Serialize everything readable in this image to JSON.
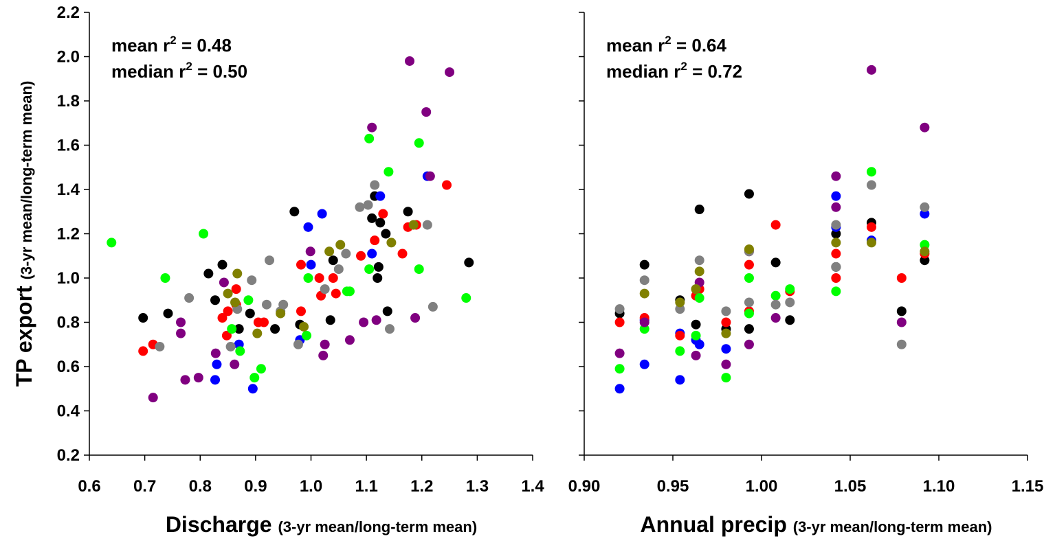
{
  "colors": {
    "black": "#000000",
    "blue": "#0000ff",
    "red": "#ff0000",
    "green": "#00ff00",
    "purple": "#800080",
    "gray": "#808080",
    "olive": "#808000"
  },
  "chart_data": [
    {
      "type": "scatter",
      "ylabel": "TP export",
      "ylabel_sub": "(3-yr mean/long-term mean)",
      "xlabel": "Discharge",
      "xlabel_sub": "(3-yr mean/long-term mean)",
      "xlim": [
        0.6,
        1.4
      ],
      "ylim": [
        0.2,
        2.2
      ],
      "xticks": [
        "0.6",
        "0.7",
        "0.8",
        "0.9",
        "1.0",
        "1.1",
        "1.2",
        "1.3",
        "1.4"
      ],
      "yticks": [
        "0.2",
        "0.4",
        "0.6",
        "0.8",
        "1.0",
        "1.2",
        "1.4",
        "1.6",
        "1.8",
        "2.0",
        "2.2"
      ],
      "annotations": [
        {
          "pre": "mean r",
          "sup": "2",
          "post": " = 0.48"
        },
        {
          "pre": "median r",
          "sup": "2",
          "post": " = 0.50"
        }
      ],
      "series": [
        {
          "color": "#000000",
          "points": [
            [
              0.697,
              0.82
            ],
            [
              0.742,
              0.84
            ],
            [
              0.815,
              1.02
            ],
            [
              0.827,
              0.9
            ],
            [
              0.84,
              1.06
            ],
            [
              0.87,
              0.77
            ],
            [
              0.89,
              0.84
            ],
            [
              0.935,
              0.77
            ],
            [
              0.97,
              1.3
            ],
            [
              0.98,
              0.79
            ],
            [
              1.035,
              0.81
            ],
            [
              1.04,
              1.08
            ],
            [
              1.11,
              1.27
            ],
            [
              1.115,
              1.37
            ],
            [
              1.12,
              1.0
            ],
            [
              1.122,
              1.05
            ],
            [
              1.125,
              1.25
            ],
            [
              1.135,
              1.2
            ],
            [
              1.138,
              0.85
            ],
            [
              1.175,
              1.3
            ],
            [
              1.285,
              1.07
            ]
          ]
        },
        {
          "color": "#0000ff",
          "points": [
            [
              0.827,
              0.54
            ],
            [
              0.83,
              0.61
            ],
            [
              0.87,
              0.7
            ],
            [
              0.895,
              0.5
            ],
            [
              0.98,
              0.72
            ],
            [
              0.995,
              1.23
            ],
            [
              1.0,
              1.06
            ],
            [
              1.02,
              1.29
            ],
            [
              1.11,
              1.11
            ],
            [
              1.125,
              1.37
            ],
            [
              1.21,
              1.46
            ]
          ]
        },
        {
          "color": "#ff0000",
          "points": [
            [
              0.697,
              0.67
            ],
            [
              0.715,
              0.7
            ],
            [
              0.84,
              0.82
            ],
            [
              0.848,
              0.74
            ],
            [
              0.85,
              0.85
            ],
            [
              0.865,
              0.95
            ],
            [
              0.865,
              0.88
            ],
            [
              0.905,
              0.8
            ],
            [
              0.915,
              0.8
            ],
            [
              0.982,
              0.85
            ],
            [
              0.982,
              1.06
            ],
            [
              1.015,
              1.0
            ],
            [
              1.018,
              0.92
            ],
            [
              1.04,
              1.0
            ],
            [
              1.045,
              0.93
            ],
            [
              1.09,
              1.1
            ],
            [
              1.115,
              1.17
            ],
            [
              1.13,
              1.29
            ],
            [
              1.165,
              1.11
            ],
            [
              1.175,
              1.23
            ],
            [
              1.19,
              1.24
            ],
            [
              1.245,
              1.42
            ]
          ]
        },
        {
          "color": "#00ff00",
          "points": [
            [
              0.64,
              1.16
            ],
            [
              0.737,
              1.0
            ],
            [
              0.806,
              1.2
            ],
            [
              0.857,
              0.77
            ],
            [
              0.872,
              0.67
            ],
            [
              0.887,
              0.9
            ],
            [
              0.898,
              0.55
            ],
            [
              0.91,
              0.59
            ],
            [
              0.992,
              0.74
            ],
            [
              0.995,
              1.0
            ],
            [
              1.065,
              0.94
            ],
            [
              1.07,
              0.94
            ],
            [
              1.105,
              1.04
            ],
            [
              1.105,
              1.63
            ],
            [
              1.14,
              1.48
            ],
            [
              1.195,
              1.61
            ],
            [
              1.195,
              1.04
            ],
            [
              1.28,
              0.91
            ]
          ]
        },
        {
          "color": "#800080",
          "points": [
            [
              0.715,
              0.46
            ],
            [
              0.765,
              0.8
            ],
            [
              0.765,
              0.75
            ],
            [
              0.773,
              0.54
            ],
            [
              0.797,
              0.55
            ],
            [
              0.828,
              0.66
            ],
            [
              0.843,
              0.98
            ],
            [
              0.862,
              0.61
            ],
            [
              0.999,
              1.12
            ],
            [
              1.022,
              0.65
            ],
            [
              1.025,
              0.7
            ],
            [
              1.07,
              0.72
            ],
            [
              1.095,
              0.8
            ],
            [
              1.11,
              1.68
            ],
            [
              1.118,
              0.81
            ],
            [
              1.178,
              1.98
            ],
            [
              1.188,
              0.82
            ],
            [
              1.208,
              1.75
            ],
            [
              1.215,
              1.46
            ],
            [
              1.25,
              1.93
            ]
          ]
        },
        {
          "color": "#808080",
          "points": [
            [
              0.727,
              0.69
            ],
            [
              0.78,
              0.91
            ],
            [
              0.855,
              0.69
            ],
            [
              0.867,
              0.86
            ],
            [
              0.893,
              0.99
            ],
            [
              0.92,
              0.88
            ],
            [
              0.925,
              1.08
            ],
            [
              0.945,
              0.85
            ],
            [
              0.95,
              0.88
            ],
            [
              0.977,
              0.7
            ],
            [
              1.025,
              0.95
            ],
            [
              1.05,
              1.04
            ],
            [
              1.063,
              1.11
            ],
            [
              1.088,
              1.32
            ],
            [
              1.103,
              1.33
            ],
            [
              1.115,
              1.42
            ],
            [
              1.142,
              0.77
            ],
            [
              1.21,
              1.24
            ],
            [
              1.22,
              0.87
            ]
          ]
        },
        {
          "color": "#808000",
          "points": [
            [
              0.85,
              0.93
            ],
            [
              0.863,
              0.89
            ],
            [
              0.867,
              1.02
            ],
            [
              0.903,
              0.75
            ],
            [
              0.945,
              0.84
            ],
            [
              0.987,
              0.78
            ],
            [
              1.033,
              1.12
            ],
            [
              1.053,
              1.15
            ],
            [
              1.145,
              1.16
            ],
            [
              1.185,
              1.24
            ]
          ]
        }
      ]
    },
    {
      "type": "scatter",
      "xlabel": "Annual precip",
      "xlabel_sub": "(3-yr mean/long-term mean)",
      "xlim": [
        0.9,
        1.15
      ],
      "ylim": [
        0.2,
        2.2
      ],
      "xticks": [
        "0.90",
        "0.95",
        "1.00",
        "1.05",
        "1.10",
        "1.15"
      ],
      "annotations": [
        {
          "pre": "mean r",
          "sup": "2",
          "post": " = 0.64"
        },
        {
          "pre": "median r",
          "sup": "2",
          "post": " = 0.72"
        }
      ],
      "series": [
        {
          "color": "#000000",
          "points": [
            [
              0.92,
              0.84
            ],
            [
              0.934,
              1.06
            ],
            [
              0.954,
              0.9
            ],
            [
              0.963,
              0.79
            ],
            [
              0.965,
              1.31
            ],
            [
              0.98,
              0.77
            ],
            [
              0.993,
              0.77
            ],
            [
              0.993,
              1.38
            ],
            [
              1.008,
              1.07
            ],
            [
              1.016,
              0.81
            ],
            [
              1.042,
              1.05
            ],
            [
              1.042,
              1.2
            ],
            [
              1.062,
              1.25
            ],
            [
              1.079,
              0.85
            ],
            [
              1.092,
              1.08
            ]
          ]
        },
        {
          "color": "#0000ff",
          "points": [
            [
              0.92,
              0.5
            ],
            [
              0.934,
              0.61
            ],
            [
              0.934,
              0.81
            ],
            [
              0.954,
              0.54
            ],
            [
              0.954,
              0.75
            ],
            [
              0.963,
              0.72
            ],
            [
              0.965,
              0.7
            ],
            [
              0.98,
              0.68
            ],
            [
              1.042,
              1.37
            ],
            [
              1.042,
              1.23
            ],
            [
              1.062,
              1.17
            ],
            [
              1.092,
              1.29
            ]
          ]
        },
        {
          "color": "#ff0000",
          "points": [
            [
              0.92,
              0.8
            ],
            [
              0.934,
              0.82
            ],
            [
              0.954,
              0.74
            ],
            [
              0.963,
              0.92
            ],
            [
              0.965,
              0.95
            ],
            [
              0.98,
              0.8
            ],
            [
              0.993,
              0.85
            ],
            [
              0.993,
              1.06
            ],
            [
              1.008,
              1.24
            ],
            [
              1.016,
              0.94
            ],
            [
              1.042,
              1.11
            ],
            [
              1.042,
              1.0
            ],
            [
              1.062,
              1.23
            ],
            [
              1.079,
              1.0
            ],
            [
              1.092,
              1.11
            ]
          ]
        },
        {
          "color": "#00ff00",
          "points": [
            [
              0.92,
              0.59
            ],
            [
              0.934,
              0.77
            ],
            [
              0.954,
              0.67
            ],
            [
              0.963,
              0.74
            ],
            [
              0.965,
              0.91
            ],
            [
              0.98,
              0.55
            ],
            [
              0.993,
              0.84
            ],
            [
              0.993,
              1.0
            ],
            [
              1.008,
              0.92
            ],
            [
              1.016,
              0.95
            ],
            [
              1.042,
              0.94
            ],
            [
              1.062,
              1.48
            ],
            [
              1.092,
              1.15
            ]
          ]
        },
        {
          "color": "#800080",
          "points": [
            [
              0.92,
              0.66
            ],
            [
              0.934,
              0.8
            ],
            [
              0.963,
              0.65
            ],
            [
              0.965,
              0.98
            ],
            [
              0.98,
              0.61
            ],
            [
              0.993,
              0.7
            ],
            [
              0.993,
              1.12
            ],
            [
              1.008,
              0.82
            ],
            [
              1.042,
              1.46
            ],
            [
              1.042,
              1.32
            ],
            [
              1.062,
              1.94
            ],
            [
              1.079,
              0.8
            ],
            [
              1.092,
              1.68
            ]
          ]
        },
        {
          "color": "#808080",
          "points": [
            [
              0.92,
              0.86
            ],
            [
              0.934,
              0.99
            ],
            [
              0.954,
              0.86
            ],
            [
              0.963,
              0.95
            ],
            [
              0.965,
              1.08
            ],
            [
              0.98,
              0.85
            ],
            [
              0.993,
              0.89
            ],
            [
              0.993,
              1.12
            ],
            [
              1.008,
              0.88
            ],
            [
              1.016,
              0.89
            ],
            [
              1.042,
              1.05
            ],
            [
              1.042,
              1.24
            ],
            [
              1.062,
              1.42
            ],
            [
              1.079,
              0.7
            ],
            [
              1.092,
              1.32
            ]
          ]
        },
        {
          "color": "#808000",
          "points": [
            [
              0.934,
              0.93
            ],
            [
              0.954,
              0.89
            ],
            [
              0.963,
              0.95
            ],
            [
              0.965,
              1.03
            ],
            [
              0.98,
              0.75
            ],
            [
              0.993,
              1.13
            ],
            [
              1.042,
              1.16
            ],
            [
              1.062,
              1.16
            ],
            [
              1.092,
              1.12
            ]
          ]
        }
      ]
    }
  ]
}
